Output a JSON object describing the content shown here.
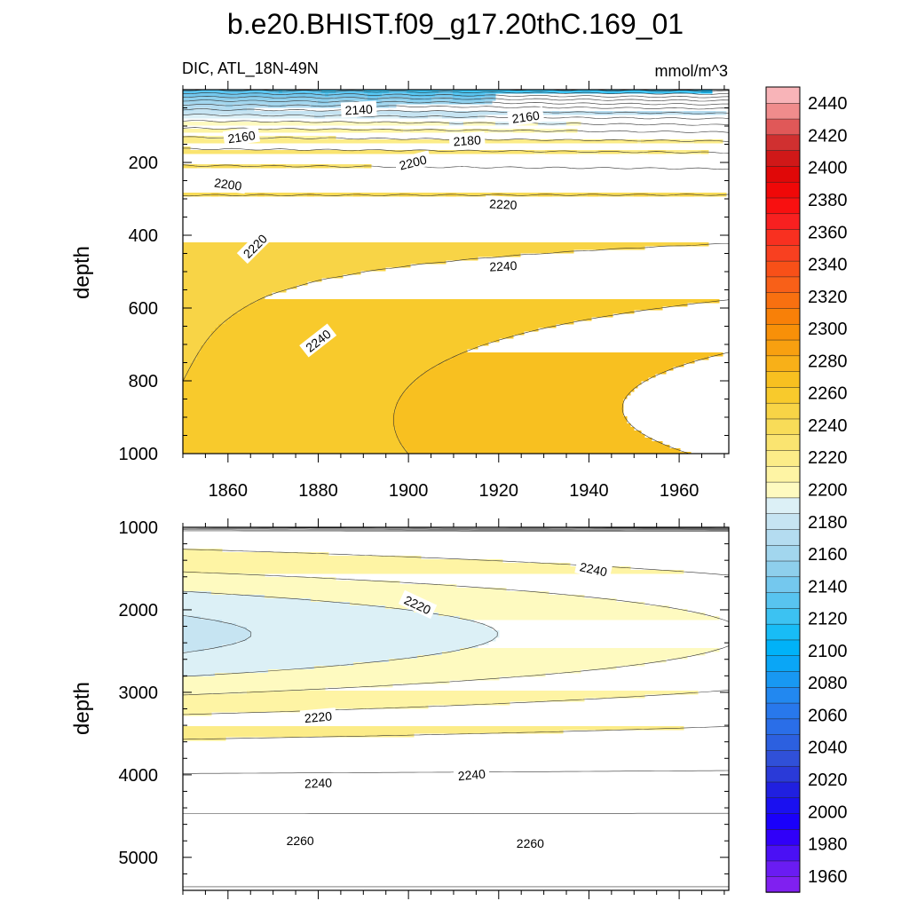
{
  "chart_data": {
    "type": "contour",
    "title": "b.e20.BHIST.f09_g17.20thC.169_01",
    "variable_label": "DIC, ATL_18N-49N",
    "units_label": "mmol/m^3",
    "ylabel": "depth",
    "x_ticks": [
      1860,
      1880,
      1900,
      1920,
      1940,
      1960
    ],
    "xlim": [
      1850,
      1971
    ],
    "panels": [
      {
        "name": "upper",
        "ylim": [
          0,
          1000
        ],
        "y_ticks": [
          200,
          400,
          600,
          800,
          1000
        ],
        "contour_labels": [
          {
            "text": "2140",
            "x": 1889,
            "y": 55,
            "angle": -3
          },
          {
            "text": "2160",
            "x": 1863,
            "y": 130,
            "angle": -8
          },
          {
            "text": "2160",
            "x": 1926,
            "y": 75,
            "angle": -8
          },
          {
            "text": "2180",
            "x": 1913,
            "y": 140,
            "angle": -4
          },
          {
            "text": "2200",
            "x": 1860,
            "y": 260,
            "angle": 8
          },
          {
            "text": "2200",
            "x": 1901,
            "y": 200,
            "angle": -14
          },
          {
            "text": "2220",
            "x": 1866,
            "y": 430,
            "angle": -45
          },
          {
            "text": "2220",
            "x": 1921,
            "y": 315,
            "angle": 3
          },
          {
            "text": "2240",
            "x": 1921,
            "y": 485,
            "angle": -3
          },
          {
            "text": "2240",
            "x": 1880,
            "y": 690,
            "angle": -38
          }
        ]
      },
      {
        "name": "lower",
        "ylim": [
          1000,
          5400
        ],
        "y_ticks": [
          1000,
          2000,
          3000,
          4000,
          5000
        ],
        "contour_labels": [
          {
            "text": "2240",
            "x": 1941,
            "y": 1510,
            "angle": 12
          },
          {
            "text": "2220",
            "x": 1902,
            "y": 1940,
            "angle": 25
          },
          {
            "text": "2220",
            "x": 1880,
            "y": 3300,
            "angle": -5
          },
          {
            "text": "2240",
            "x": 1880,
            "y": 4100,
            "angle": -2
          },
          {
            "text": "2240",
            "x": 1914,
            "y": 4000,
            "angle": -5
          },
          {
            "text": "2260",
            "x": 1876,
            "y": 4800,
            "angle": 0
          },
          {
            "text": "2260",
            "x": 1927,
            "y": 4830,
            "angle": 0
          }
        ]
      }
    ],
    "colorbar": {
      "levels": [
        1950,
        1960,
        1970,
        1980,
        1990,
        2000,
        2010,
        2020,
        2030,
        2040,
        2050,
        2060,
        2070,
        2080,
        2090,
        2100,
        2110,
        2120,
        2130,
        2140,
        2150,
        2160,
        2170,
        2180,
        2190,
        2200,
        2210,
        2220,
        2230,
        2240,
        2250,
        2260,
        2270,
        2280,
        2290,
        2300,
        2310,
        2320,
        2330,
        2340,
        2350,
        2360,
        2370,
        2380,
        2390,
        2400,
        2410,
        2420,
        2430,
        2440,
        2450
      ],
      "tick_labels": [
        1960,
        1980,
        2000,
        2020,
        2040,
        2060,
        2080,
        2100,
        2120,
        2140,
        2160,
        2180,
        2200,
        2220,
        2240,
        2260,
        2280,
        2300,
        2320,
        2340,
        2360,
        2380,
        2400,
        2420,
        2440
      ],
      "colors": [
        "#8020f0",
        "#6a1cf2",
        "#4a10f5",
        "#3000f8",
        "#1a00fa",
        "#1a10f0",
        "#2020e0",
        "#2a3ad8",
        "#3050d8",
        "#2c60e0",
        "#2a6ee8",
        "#2878ec",
        "#2288f0",
        "#1898f2",
        "#0aa6f6",
        "#00b2f8",
        "#18bcf6",
        "#3cc2f2",
        "#58c4f0",
        "#74c8ee",
        "#8ecfec",
        "#a2d6ee",
        "#b4dcf0",
        "#c6e4f2",
        "#dcf0f6",
        "#fefac0",
        "#fef4a4",
        "#fcec88",
        "#fae470",
        "#f8dc58",
        "#f8d446",
        "#f8ca2c",
        "#f8c020",
        "#f8b018",
        "#f8a010",
        "#f89008",
        "#f88008",
        "#f87010",
        "#f86018",
        "#f85018",
        "#f84020",
        "#f83020",
        "#f82020",
        "#f81010",
        "#f00808",
        "#e00808",
        "#d01818",
        "#d03030",
        "#e05858",
        "#f08c8c",
        "#f8b4b8"
      ]
    }
  }
}
